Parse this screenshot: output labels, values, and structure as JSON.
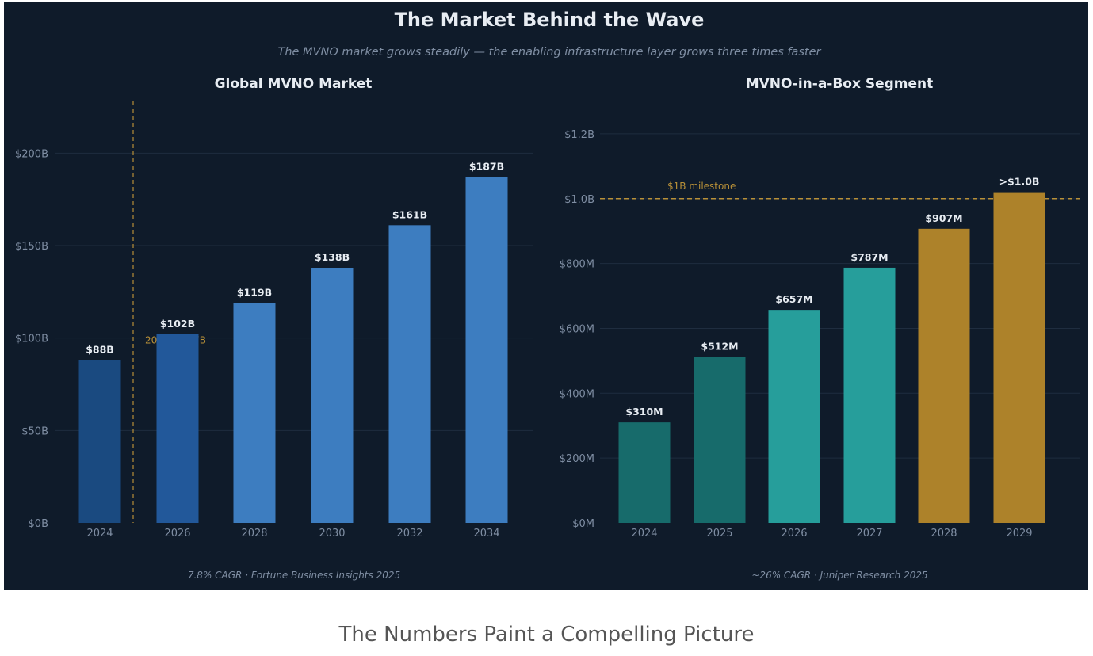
{
  "title": "The Market Behind the Wave",
  "subtitle": "The MVNO market grows steadily — the enabling infrastructure layer grows three times faster",
  "caption": "The Numbers Paint a Compelling Picture",
  "colors": {
    "bg": "#0f1b2a",
    "grid": "#1f2d3f",
    "tick": "#7f8ea3",
    "label": "#e8edf3",
    "gold": "#b89038"
  },
  "chart_data": [
    {
      "type": "bar",
      "title": "Global MVNO Market",
      "categories": [
        "2024",
        "2026",
        "2028",
        "2030",
        "2032",
        "2034"
      ],
      "values": [
        88,
        102,
        119,
        138,
        161,
        187
      ],
      "labels": [
        "$88B",
        "$102B",
        "$119B",
        "$138B",
        "$161B",
        "$187B"
      ],
      "colors": [
        "#1a4a80",
        "#22589a",
        "#3d7dc0",
        "#3d7dc0",
        "#3d7dc0",
        "#3d7dc0"
      ],
      "ylim": [
        0,
        228
      ],
      "yticks": [
        0,
        50,
        100,
        150,
        200
      ],
      "ytick_labels": [
        "$0B",
        "$50B",
        "$100B",
        "$150B",
        "$200B"
      ],
      "grid": true,
      "annotation": {
        "text": "2025  $98.7B",
        "x_between": [
          "2024",
          "2026"
        ],
        "value": 98.7
      },
      "footnote": "7.8% CAGR  ·  Fortune Business Insights 2025"
    },
    {
      "type": "bar",
      "title": "MVNO-in-a-Box Segment",
      "categories": [
        "2024",
        "2025",
        "2026",
        "2027",
        "2028",
        "2029"
      ],
      "values": [
        0.31,
        0.512,
        0.657,
        0.787,
        0.907,
        1.02
      ],
      "labels": [
        "$310M",
        "$512M",
        "$657M",
        "$787M",
        "$907M",
        ">$1.0B"
      ],
      "colors": [
        "#176b6b",
        "#176b6b",
        "#269e9b",
        "#269e9b",
        "#ad822a",
        "#ad822a"
      ],
      "ylim": [
        0,
        1.3
      ],
      "yticks": [
        0,
        0.2,
        0.4,
        0.6,
        0.8,
        1.0,
        1.2
      ],
      "ytick_labels": [
        "$0M",
        "$200M",
        "$400M",
        "$600M",
        "$800M",
        "$1.0B",
        "$1.2B"
      ],
      "grid": true,
      "hline": {
        "value": 1.0,
        "text": "$1B milestone"
      },
      "footnote": "~26% CAGR  ·  Juniper Research 2025"
    }
  ]
}
